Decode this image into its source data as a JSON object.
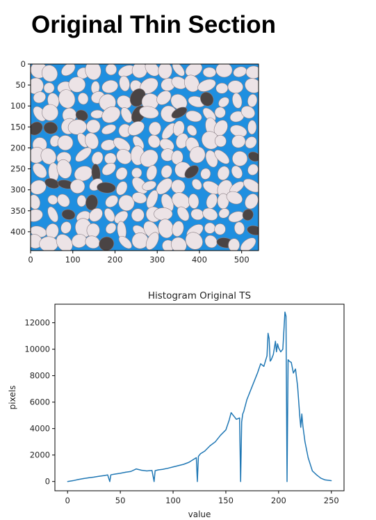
{
  "page": {
    "title": "Original Thin Section"
  },
  "image_panel": {
    "description_label": "thin section micrograph",
    "x_ticks": [
      "0",
      "100",
      "200",
      "300",
      "400",
      "500"
    ],
    "y_ticks": [
      "0",
      "50",
      "100",
      "150",
      "200",
      "250",
      "300",
      "350",
      "400"
    ],
    "colors": {
      "pore": "#1f8fe0",
      "grain": "#ece3e6",
      "grain_edge": "#8a7f86",
      "dark_grain": "#4a4444"
    }
  },
  "chart_data": {
    "type": "line",
    "title": "Histogram Original TS",
    "xlabel": "value",
    "ylabel": "pixels",
    "xlim": [
      -12,
      262
    ],
    "ylim": [
      -700,
      13400
    ],
    "x_ticks": [
      0,
      50,
      100,
      150,
      200,
      250
    ],
    "y_ticks": [
      0,
      2000,
      4000,
      6000,
      8000,
      10000,
      12000
    ],
    "series": [
      {
        "color": "#1f77b4",
        "x": [
          0,
          5,
          10,
          15,
          20,
          25,
          30,
          35,
          38,
          40,
          41,
          42,
          45,
          50,
          55,
          60,
          65,
          70,
          75,
          80,
          82,
          83,
          84,
          86,
          90,
          95,
          100,
          105,
          110,
          115,
          120,
          122,
          123,
          124,
          126,
          130,
          135,
          140,
          145,
          150,
          153,
          155,
          158,
          160,
          163,
          164,
          165,
          166,
          167,
          170,
          175,
          180,
          183,
          186,
          189,
          190,
          191,
          192,
          193,
          195,
          197,
          198,
          199,
          200,
          202,
          204,
          206,
          207,
          208,
          209,
          210,
          212,
          214,
          216,
          218,
          220,
          221,
          222,
          223,
          225,
          228,
          232,
          236,
          240,
          244,
          248,
          250
        ],
        "y": [
          0,
          60,
          150,
          220,
          280,
          330,
          400,
          450,
          500,
          0,
          500,
          520,
          560,
          620,
          700,
          760,
          950,
          850,
          800,
          830,
          0,
          820,
          840,
          880,
          920,
          1000,
          1100,
          1200,
          1300,
          1450,
          1700,
          1800,
          0,
          1900,
          2100,
          2300,
          2700,
          3000,
          3500,
          3900,
          4600,
          5200,
          4900,
          4700,
          4800,
          0,
          4500,
          5100,
          5300,
          6200,
          7200,
          8200,
          8900,
          8700,
          9500,
          11200,
          10800,
          9100,
          9200,
          9600,
          10600,
          9800,
          10400,
          10100,
          9800,
          10000,
          12800,
          12500,
          0,
          9200,
          9100,
          9000,
          8200,
          8500,
          7200,
          5000,
          4100,
          5100,
          4200,
          3000,
          1800,
          800,
          500,
          250,
          120,
          80,
          60
        ]
      }
    ]
  }
}
